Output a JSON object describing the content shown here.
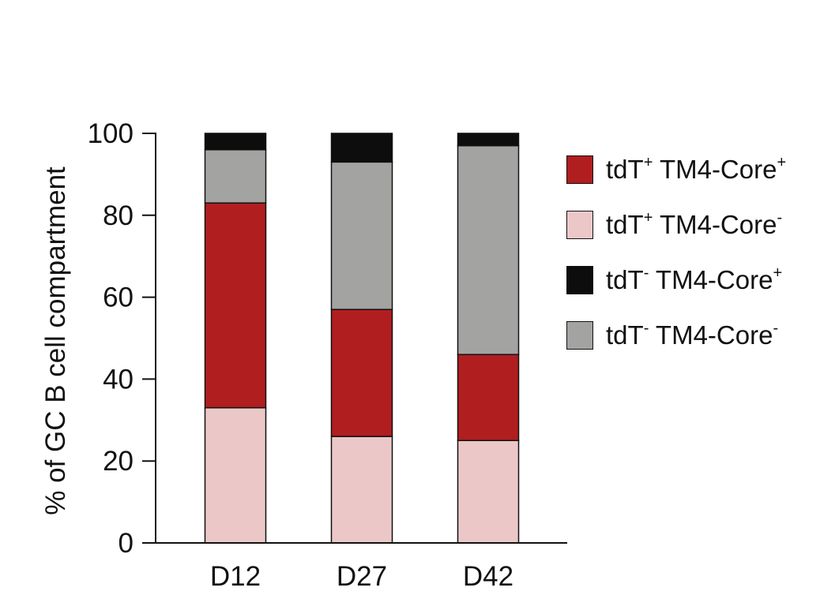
{
  "chart_data": {
    "type": "bar",
    "stacked": true,
    "ylabel": "% of GC B cell compartment",
    "xlabel": "",
    "ylim": [
      0,
      100
    ],
    "yticks": [
      0,
      20,
      40,
      60,
      80,
      100
    ],
    "categories": [
      "D12",
      "D27",
      "D42"
    ],
    "series": [
      {
        "name": "tdT+ TM4-Core-",
        "label_base": "tdT",
        "label_sup1": "+",
        "label_mid": " TM4-Core",
        "label_sup2": "-",
        "color": "#ebc8c7",
        "values": [
          33,
          26,
          25
        ]
      },
      {
        "name": "tdT+ TM4-Core+",
        "label_base": "tdT",
        "label_sup1": "+",
        "label_mid": " TM4-Core",
        "label_sup2": "+",
        "color": "#b11e1f",
        "values": [
          50,
          31,
          21
        ]
      },
      {
        "name": "tdT- TM4-Core-",
        "label_base": "tdT",
        "label_sup1": "-",
        "label_mid": " TM4-Core",
        "label_sup2": "-",
        "color": "#a3a3a1",
        "values": [
          13,
          36,
          51
        ]
      },
      {
        "name": "tdT- TM4-Core+",
        "label_base": "tdT",
        "label_sup1": "-",
        "label_mid": " TM4-Core",
        "label_sup2": "+",
        "color": "#0d0d0d",
        "values": [
          4,
          7,
          3
        ]
      }
    ],
    "legend": {
      "position": "right",
      "order": [
        1,
        0,
        3,
        2
      ]
    },
    "grid": false
  }
}
